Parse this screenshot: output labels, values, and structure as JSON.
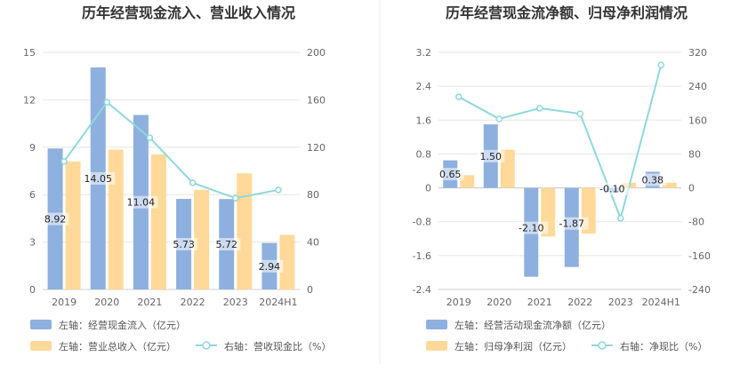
{
  "chart_data": [
    {
      "type": "bar",
      "title": "历年经营现金流入、营业收入情况",
      "categories": [
        "2019",
        "2020",
        "2021",
        "2022",
        "2023",
        "2024H1"
      ],
      "y_left_ticks": [
        "0",
        "3",
        "6",
        "9",
        "12",
        "15"
      ],
      "y_right_ticks": [
        "0",
        "40",
        "80",
        "120",
        "160",
        "200"
      ],
      "ylim_left": [
        0,
        15
      ],
      "ylim_right": [
        0,
        200
      ],
      "series": [
        {
          "name": "左轴：经营现金流入（亿元）",
          "kind": "bar",
          "axis": "left",
          "color": "#8eb0de",
          "values": [
            8.92,
            14.05,
            11.04,
            5.73,
            5.72,
            2.94
          ],
          "labels": [
            "8.92",
            "14.05",
            "11.04",
            "5.73",
            "5.72",
            "2.94"
          ]
        },
        {
          "name": "左轴：营业总收入（亿元）",
          "kind": "bar",
          "axis": "left",
          "color": "#ffd999",
          "values": [
            8.1,
            8.85,
            8.55,
            6.3,
            7.35,
            3.45
          ]
        },
        {
          "name": "右轴：营收现金比（%）",
          "kind": "line",
          "axis": "right",
          "color": "#8fd8dc",
          "values": [
            108,
            158,
            128,
            90,
            77,
            84
          ]
        }
      ],
      "grid": true,
      "legend_position": "bottom"
    },
    {
      "type": "bar",
      "title": "历年经营现金流净额、归母净利润情况",
      "categories": [
        "2019",
        "2020",
        "2021",
        "2022",
        "2023",
        "2024H1"
      ],
      "y_left_ticks": [
        "-2.4",
        "-1.6",
        "-0.8",
        "0",
        "0.8",
        "1.6",
        "2.4",
        "3.2"
      ],
      "y_right_ticks": [
        "-240",
        "-160",
        "-80",
        "0",
        "80",
        "160",
        "240",
        "320"
      ],
      "ylim_left": [
        -2.4,
        3.2
      ],
      "ylim_right": [
        -240,
        320
      ],
      "series": [
        {
          "name": "左轴：经营活动现金流净额（亿元）",
          "kind": "bar",
          "axis": "left",
          "color": "#8eb0de",
          "values": [
            0.65,
            1.5,
            -2.1,
            -1.87,
            -0.1,
            0.38
          ],
          "labels": [
            "0.65",
            "1.50",
            "-2.10",
            "-1.87",
            "-0.10",
            "0.38"
          ]
        },
        {
          "name": "左轴：归母净利润（亿元）",
          "kind": "bar",
          "axis": "left",
          "color": "#ffd999",
          "values": [
            0.3,
            0.9,
            -1.15,
            -1.08,
            0.12,
            0.12
          ]
        },
        {
          "name": "右轴：净现比（%）",
          "kind": "line",
          "axis": "right",
          "color": "#8fd8dc",
          "values": [
            215,
            163,
            188,
            175,
            -72,
            290
          ]
        }
      ],
      "grid": true,
      "legend_position": "bottom"
    }
  ]
}
